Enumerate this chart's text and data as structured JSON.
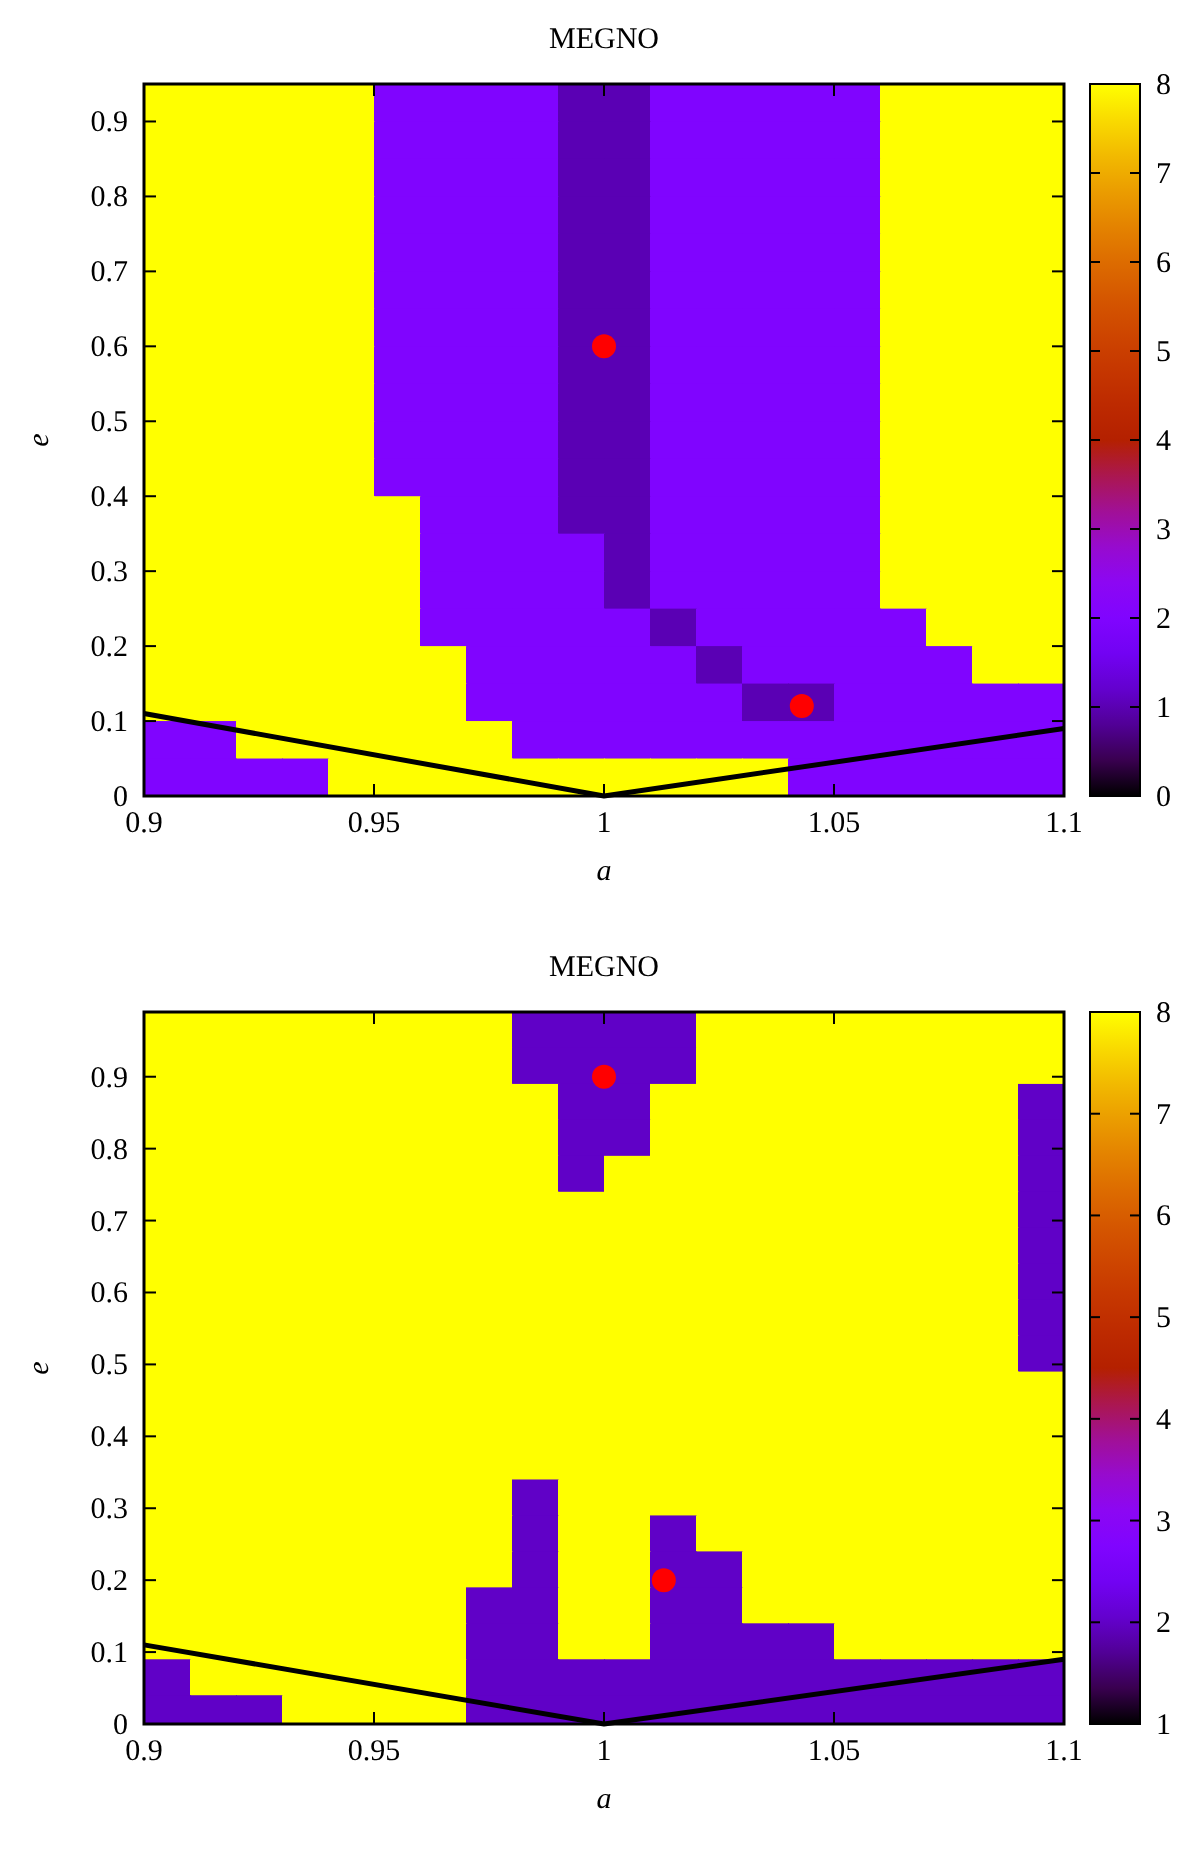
{
  "chart_data": [
    {
      "type": "heatmap",
      "title": "MEGNO",
      "xlabel": "a",
      "ylabel": "e",
      "x": [
        0.905,
        0.915,
        0.925,
        0.935,
        0.945,
        0.955,
        0.965,
        0.975,
        0.985,
        0.995,
        1.005,
        1.015,
        1.025,
        1.035,
        1.045,
        1.055,
        1.065,
        1.075,
        1.085,
        1.095
      ],
      "y": [
        0.925,
        0.875,
        0.825,
        0.775,
        0.725,
        0.675,
        0.625,
        0.575,
        0.525,
        0.475,
        0.425,
        0.375,
        0.325,
        0.275,
        0.225,
        0.175,
        0.125,
        0.075,
        0.025
      ],
      "xlim": [
        0.9,
        1.1
      ],
      "xticks": [
        0.9,
        0.95,
        1,
        1.05,
        1.1
      ],
      "ylim": [
        0,
        0.95
      ],
      "yticks": [
        0,
        0.1,
        0.2,
        0.3,
        0.4,
        0.5,
        0.6,
        0.7,
        0.8,
        0.9
      ],
      "clim": [
        0,
        8
      ],
      "cticks": [
        0,
        1,
        2,
        3,
        4,
        5,
        6,
        7,
        8
      ],
      "cells": [
        [
          8,
          8,
          8,
          8,
          8,
          2,
          2,
          2,
          2,
          1,
          1,
          2,
          2,
          2,
          2,
          2,
          8,
          8,
          8,
          8
        ],
        [
          8,
          8,
          8,
          8,
          8,
          2,
          2,
          2,
          2,
          1,
          1,
          2,
          2,
          2,
          2,
          2,
          8,
          8,
          8,
          8
        ],
        [
          8,
          8,
          8,
          8,
          8,
          2,
          2,
          2,
          2,
          1,
          1,
          2,
          2,
          2,
          2,
          2,
          8,
          8,
          8,
          8
        ],
        [
          8,
          8,
          8,
          8,
          8,
          2,
          2,
          2,
          2,
          1,
          1,
          2,
          2,
          2,
          2,
          2,
          8,
          8,
          8,
          8
        ],
        [
          8,
          8,
          8,
          8,
          8,
          2,
          2,
          2,
          2,
          1,
          1,
          2,
          2,
          2,
          2,
          2,
          8,
          8,
          8,
          8
        ],
        [
          8,
          8,
          8,
          8,
          8,
          2,
          2,
          2,
          2,
          1,
          1,
          2,
          2,
          2,
          2,
          2,
          8,
          8,
          8,
          8
        ],
        [
          8,
          8,
          8,
          8,
          8,
          2,
          2,
          2,
          2,
          1,
          1,
          2,
          2,
          2,
          2,
          2,
          8,
          8,
          8,
          8
        ],
        [
          8,
          8,
          8,
          8,
          8,
          2,
          2,
          2,
          2,
          1,
          1,
          2,
          2,
          2,
          2,
          2,
          8,
          8,
          8,
          8
        ],
        [
          8,
          8,
          8,
          8,
          8,
          2,
          2,
          2,
          2,
          1,
          1,
          2,
          2,
          2,
          2,
          2,
          8,
          8,
          8,
          8
        ],
        [
          8,
          8,
          8,
          8,
          8,
          2,
          2,
          2,
          2,
          1,
          1,
          2,
          2,
          2,
          2,
          2,
          8,
          8,
          8,
          8
        ],
        [
          8,
          8,
          8,
          8,
          8,
          2,
          2,
          2,
          2,
          1,
          1,
          2,
          2,
          2,
          2,
          2,
          8,
          8,
          8,
          8
        ],
        [
          8,
          8,
          8,
          8,
          8,
          8,
          2,
          2,
          2,
          1,
          1,
          2,
          2,
          2,
          2,
          2,
          8,
          8,
          8,
          8
        ],
        [
          8,
          8,
          8,
          8,
          8,
          8,
          2,
          2,
          2,
          2,
          1,
          2,
          2,
          2,
          2,
          2,
          8,
          8,
          8,
          8
        ],
        [
          8,
          8,
          8,
          8,
          8,
          8,
          2,
          2,
          2,
          2,
          1,
          2,
          2,
          2,
          2,
          2,
          8,
          8,
          8,
          8
        ],
        [
          8,
          8,
          8,
          8,
          8,
          8,
          2,
          2,
          2,
          2,
          2,
          1,
          2,
          2,
          2,
          2,
          2,
          8,
          8,
          8
        ],
        [
          8,
          8,
          8,
          8,
          8,
          8,
          8,
          2,
          2,
          2,
          2,
          2,
          1,
          2,
          2,
          2,
          2,
          2,
          8,
          8
        ],
        [
          8,
          8,
          8,
          8,
          8,
          8,
          8,
          2,
          2,
          2,
          2,
          2,
          2,
          1,
          1,
          2,
          2,
          2,
          2,
          2
        ],
        [
          2,
          2,
          8,
          8,
          8,
          8,
          8,
          8,
          2,
          2,
          2,
          2,
          2,
          2,
          2,
          2,
          2,
          2,
          2,
          2
        ],
        [
          2,
          2,
          2,
          2,
          8,
          8,
          8,
          8,
          8,
          8,
          8,
          8,
          8,
          8,
          2,
          2,
          2,
          2,
          2,
          2
        ]
      ],
      "series": [
        {
          "type": "line",
          "color": "#000000",
          "x": [
            0.9,
            1,
            1.1
          ],
          "values": [
            0.11,
            0,
            0.09
          ]
        },
        {
          "type": "scatter",
          "color": "#ff0000",
          "x": [
            1,
            1.043
          ],
          "values": [
            0.6,
            0.12
          ]
        }
      ]
    },
    {
      "type": "heatmap",
      "title": "MEGNO",
      "xlabel": "a",
      "ylabel": "e",
      "x": [
        0.905,
        0.915,
        0.925,
        0.935,
        0.945,
        0.955,
        0.965,
        0.975,
        0.985,
        0.995,
        1.005,
        1.015,
        1.025,
        1.035,
        1.045,
        1.055,
        1.065,
        1.075,
        1.085,
        1.095
      ],
      "y": [
        0.965,
        0.915,
        0.865,
        0.815,
        0.765,
        0.715,
        0.665,
        0.615,
        0.565,
        0.515,
        0.465,
        0.415,
        0.365,
        0.315,
        0.265,
        0.215,
        0.165,
        0.115,
        0.065,
        0.015
      ],
      "xlim": [
        0.9,
        1.1
      ],
      "xticks": [
        0.9,
        0.95,
        1,
        1.05,
        1.1
      ],
      "ylim": [
        0,
        0.99
      ],
      "yticks": [
        0,
        0.1,
        0.2,
        0.3,
        0.4,
        0.5,
        0.6,
        0.7,
        0.8,
        0.9
      ],
      "clim": [
        1,
        8
      ],
      "cticks": [
        1,
        2,
        3,
        4,
        5,
        6,
        7,
        8
      ],
      "cells": [
        [
          8,
          8,
          8,
          8,
          8,
          8,
          8,
          8,
          2,
          2,
          2,
          2,
          8,
          8,
          8,
          8,
          8,
          8,
          8,
          8
        ],
        [
          8,
          8,
          8,
          8,
          8,
          8,
          8,
          8,
          2,
          2,
          2,
          2,
          8,
          8,
          8,
          8,
          8,
          8,
          8,
          8
        ],
        [
          8,
          8,
          8,
          8,
          8,
          8,
          8,
          8,
          8,
          2,
          2,
          8,
          8,
          8,
          8,
          8,
          8,
          8,
          8,
          2
        ],
        [
          8,
          8,
          8,
          8,
          8,
          8,
          8,
          8,
          8,
          2,
          2,
          8,
          8,
          8,
          8,
          8,
          8,
          8,
          8,
          2
        ],
        [
          8,
          8,
          8,
          8,
          8,
          8,
          8,
          8,
          8,
          2,
          8,
          8,
          8,
          8,
          8,
          8,
          8,
          8,
          8,
          2
        ],
        [
          8,
          8,
          8,
          8,
          8,
          8,
          8,
          8,
          8,
          8,
          8,
          8,
          8,
          8,
          8,
          8,
          8,
          8,
          8,
          2
        ],
        [
          8,
          8,
          8,
          8,
          8,
          8,
          8,
          8,
          8,
          8,
          8,
          8,
          8,
          8,
          8,
          8,
          8,
          8,
          8,
          2
        ],
        [
          8,
          8,
          8,
          8,
          8,
          8,
          8,
          8,
          8,
          8,
          8,
          8,
          8,
          8,
          8,
          8,
          8,
          8,
          8,
          2
        ],
        [
          8,
          8,
          8,
          8,
          8,
          8,
          8,
          8,
          8,
          8,
          8,
          8,
          8,
          8,
          8,
          8,
          8,
          8,
          8,
          2
        ],
        [
          8,
          8,
          8,
          8,
          8,
          8,
          8,
          8,
          8,
          8,
          8,
          8,
          8,
          8,
          8,
          8,
          8,
          8,
          8,
          2
        ],
        [
          8,
          8,
          8,
          8,
          8,
          8,
          8,
          8,
          8,
          8,
          8,
          8,
          8,
          8,
          8,
          8,
          8,
          8,
          8,
          8
        ],
        [
          8,
          8,
          8,
          8,
          8,
          8,
          8,
          8,
          8,
          8,
          8,
          8,
          8,
          8,
          8,
          8,
          8,
          8,
          8,
          8
        ],
        [
          8,
          8,
          8,
          8,
          8,
          8,
          8,
          8,
          8,
          8,
          8,
          8,
          8,
          8,
          8,
          8,
          8,
          8,
          8,
          8
        ],
        [
          8,
          8,
          8,
          8,
          8,
          8,
          8,
          8,
          2,
          8,
          8,
          8,
          8,
          8,
          8,
          8,
          8,
          8,
          8,
          8
        ],
        [
          8,
          8,
          8,
          8,
          8,
          8,
          8,
          8,
          2,
          8,
          8,
          2,
          8,
          8,
          8,
          8,
          8,
          8,
          8,
          8
        ],
        [
          8,
          8,
          8,
          8,
          8,
          8,
          8,
          8,
          2,
          8,
          8,
          2,
          2,
          8,
          8,
          8,
          8,
          8,
          8,
          8
        ],
        [
          8,
          8,
          8,
          8,
          8,
          8,
          8,
          2,
          2,
          8,
          8,
          2,
          2,
          8,
          8,
          8,
          8,
          8,
          8,
          8
        ],
        [
          8,
          8,
          8,
          8,
          8,
          8,
          8,
          2,
          2,
          8,
          8,
          2,
          2,
          2,
          2,
          8,
          8,
          8,
          8,
          8
        ],
        [
          2,
          8,
          8,
          8,
          8,
          8,
          8,
          2,
          2,
          2,
          2,
          2,
          2,
          2,
          2,
          2,
          2,
          2,
          2,
          2
        ],
        [
          2,
          2,
          2,
          8,
          8,
          8,
          8,
          2,
          2,
          2,
          2,
          2,
          2,
          2,
          2,
          2,
          2,
          2,
          2,
          2
        ]
      ],
      "series": [
        {
          "type": "line",
          "color": "#000000",
          "x": [
            0.9,
            1,
            1.1
          ],
          "values": [
            0.11,
            0,
            0.09
          ]
        },
        {
          "type": "scatter",
          "color": "#ff0000",
          "x": [
            1,
            1.013
          ],
          "values": [
            0.9,
            0.2
          ]
        }
      ]
    }
  ]
}
